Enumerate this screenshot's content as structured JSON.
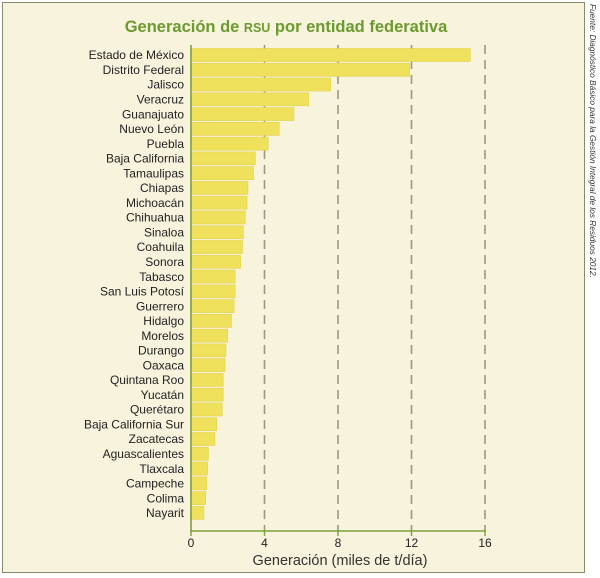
{
  "chart_data": {
    "type": "bar",
    "orientation": "horizontal",
    "title_parts": [
      {
        "text": "Generación de ",
        "small": false
      },
      {
        "text": "RSU",
        "small": true
      },
      {
        "text": " por entidad federativa",
        "small": false
      }
    ],
    "xlabel": "Generación (miles de t/día)",
    "ylabel": "",
    "xlim": [
      0,
      16
    ],
    "xticks": [
      "0",
      "4",
      "8",
      "12",
      "16"
    ],
    "xtick_values": [
      0,
      4,
      8,
      12,
      16
    ],
    "grid": "vertical dashed",
    "categories": [
      "Estado de México",
      "Distrito Federal",
      "Jalisco",
      "Veracruz",
      "Guanajuato",
      "Nuevo León",
      "Puebla",
      "Baja California",
      "Tamaulipas",
      "Chiapas",
      "Michoacán",
      "Chihuahua",
      "Sinaloa",
      "Coahuila",
      "Sonora",
      "Tabasco",
      "San Luis Potosí",
      "Guerrero",
      "Hidalgo",
      "Morelos",
      "Durango",
      "Oaxaca",
      "Quintana Roo",
      "Yucatán",
      "Querétaro",
      "Baja California Sur",
      "Zacatecas",
      "Aguascalientes",
      "Tlaxcala",
      "Campeche",
      "Colima",
      "Nayarit"
    ],
    "values": [
      15.2,
      11.9,
      7.6,
      6.4,
      5.6,
      4.8,
      4.2,
      3.5,
      3.4,
      3.1,
      3.05,
      2.95,
      2.85,
      2.8,
      2.7,
      2.4,
      2.4,
      2.35,
      2.2,
      2.0,
      1.9,
      1.85,
      1.75,
      1.75,
      1.7,
      1.4,
      1.3,
      0.95,
      0.9,
      0.85,
      0.8,
      0.7
    ]
  },
  "colors": {
    "bar": "#efe15c",
    "bar_edge": "#e2d24a",
    "axis": "#7aa23a",
    "grid": "#9a9a7a",
    "title": "#6b9a2e",
    "frame_bg": "#f7f3dd"
  },
  "source_note": "Fuente: Diagnóstico Básico para la Gestión Integral de los Residuos 2012."
}
